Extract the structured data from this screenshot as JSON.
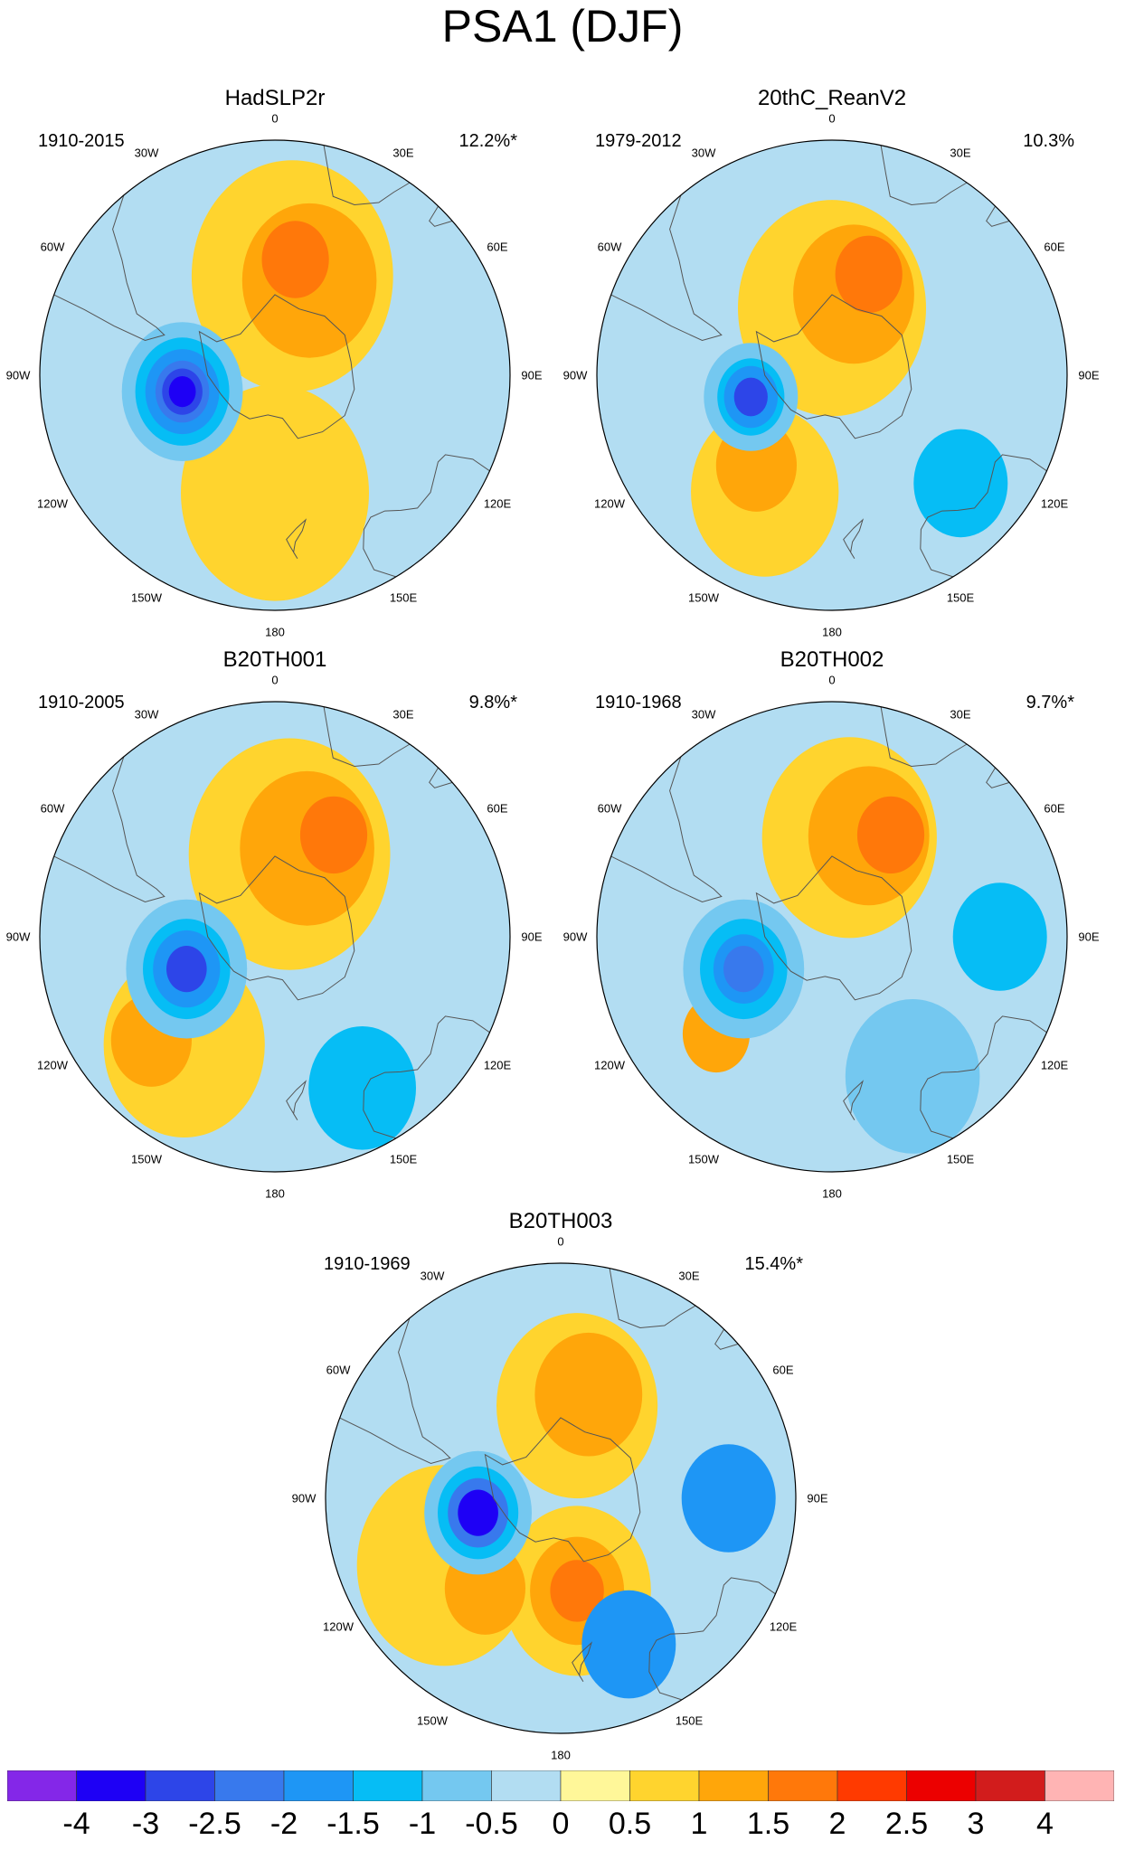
{
  "title": "PSA1 (DJF)",
  "lon_labels": [
    "0",
    "30E",
    "60E",
    "90E",
    "120E",
    "150E",
    "180",
    "150W",
    "120W",
    "90W",
    "60W",
    "30W"
  ],
  "panels": [
    {
      "name": "HadSLP2r",
      "period": "1910-2015",
      "variance": "12.2%*",
      "blobs": [
        {
          "lat": -55,
          "lon": 180,
          "r": 28,
          "level": 0.5
        },
        {
          "lat": -60,
          "lon": 10,
          "r": 30,
          "level": 0.5
        },
        {
          "lat": -60,
          "lon": 20,
          "r": 20,
          "level": 1
        },
        {
          "lat": -55,
          "lon": 10,
          "r": 10,
          "level": 1.5
        },
        {
          "lat": -62,
          "lon": -100,
          "r": 18,
          "level": -0.5
        },
        {
          "lat": -62,
          "lon": -100,
          "r": 14,
          "level": -1
        },
        {
          "lat": -62,
          "lon": -100,
          "r": 11,
          "level": -1.5
        },
        {
          "lat": -62,
          "lon": -100,
          "r": 8,
          "level": -2
        },
        {
          "lat": -62,
          "lon": -100,
          "r": 6,
          "level": -2.5
        },
        {
          "lat": -62,
          "lon": -100,
          "r": 4,
          "level": -3
        }
      ]
    },
    {
      "name": "20thC_ReanV2",
      "period": "1979-2012",
      "variance": "10.3%",
      "blobs": [
        {
          "lat": -70,
          "lon": 0,
          "r": 28,
          "level": 0.5
        },
        {
          "lat": -50,
          "lon": -150,
          "r": 22,
          "level": 0.5
        },
        {
          "lat": -65,
          "lon": 15,
          "r": 18,
          "level": 1
        },
        {
          "lat": -55,
          "lon": -140,
          "r": 12,
          "level": 1
        },
        {
          "lat": -58,
          "lon": 20,
          "r": 10,
          "level": 1.5
        },
        {
          "lat": -40,
          "lon": 130,
          "r": 14,
          "level": -1
        },
        {
          "lat": -65,
          "lon": -105,
          "r": 14,
          "level": -0.5
        },
        {
          "lat": -65,
          "lon": -105,
          "r": 10,
          "level": -1
        },
        {
          "lat": -65,
          "lon": -105,
          "r": 8,
          "level": -1.5
        },
        {
          "lat": -65,
          "lon": -105,
          "r": 5,
          "level": -2.5
        }
      ]
    },
    {
      "name": "B20TH001",
      "period": "1910-2005",
      "variance": "9.8%*",
      "blobs": [
        {
          "lat": -48,
          "lon": -140,
          "r": 24,
          "level": 0.5
        },
        {
          "lat": -65,
          "lon": 10,
          "r": 30,
          "level": 0.5
        },
        {
          "lat": -62,
          "lon": 20,
          "r": 20,
          "level": 1
        },
        {
          "lat": -55,
          "lon": 30,
          "r": 10,
          "level": 1.5
        },
        {
          "lat": -42,
          "lon": -130,
          "r": 12,
          "level": 1
        },
        {
          "lat": -38,
          "lon": 150,
          "r": 16,
          "level": -1
        },
        {
          "lat": -62,
          "lon": -110,
          "r": 18,
          "level": -0.5
        },
        {
          "lat": -62,
          "lon": -110,
          "r": 13,
          "level": -1
        },
        {
          "lat": -62,
          "lon": -110,
          "r": 10,
          "level": -1.5
        },
        {
          "lat": -62,
          "lon": -110,
          "r": 6,
          "level": -2.5
        }
      ]
    },
    {
      "name": "B20TH002",
      "period": "1910-1968",
      "variance": "9.7%*",
      "blobs": [
        {
          "lat": -60,
          "lon": 10,
          "r": 26,
          "level": 0.5
        },
        {
          "lat": -58,
          "lon": 20,
          "r": 18,
          "level": 1
        },
        {
          "lat": -55,
          "lon": 30,
          "r": 10,
          "level": 1.5
        },
        {
          "lat": -45,
          "lon": -130,
          "r": 10,
          "level": 1
        },
        {
          "lat": -40,
          "lon": 90,
          "r": 14,
          "level": -1
        },
        {
          "lat": -42,
          "lon": 150,
          "r": 20,
          "level": -0.5
        },
        {
          "lat": -62,
          "lon": -110,
          "r": 18,
          "level": -0.5
        },
        {
          "lat": -62,
          "lon": -110,
          "r": 13,
          "level": -1
        },
        {
          "lat": -62,
          "lon": -110,
          "r": 9,
          "level": -1.5
        },
        {
          "lat": -62,
          "lon": -110,
          "r": 6,
          "level": -2
        }
      ]
    },
    {
      "name": "B20TH003",
      "period": "1910-1969",
      "variance": "15.4%*",
      "blobs": [
        {
          "lat": -50,
          "lon": -120,
          "r": 26,
          "level": 0.5
        },
        {
          "lat": -62,
          "lon": 10,
          "r": 24,
          "level": 0.5
        },
        {
          "lat": -62,
          "lon": 170,
          "r": 22,
          "level": 0.5
        },
        {
          "lat": -58,
          "lon": 15,
          "r": 16,
          "level": 1
        },
        {
          "lat": -55,
          "lon": -140,
          "r": 12,
          "level": 1
        },
        {
          "lat": -62,
          "lon": 170,
          "r": 14,
          "level": 1
        },
        {
          "lat": -62,
          "lon": 170,
          "r": 8,
          "level": 1.5
        },
        {
          "lat": -40,
          "lon": 90,
          "r": 14,
          "level": -1.5
        },
        {
          "lat": -42,
          "lon": 155,
          "r": 14,
          "level": -1.5
        },
        {
          "lat": -65,
          "lon": -100,
          "r": 16,
          "level": -0.5
        },
        {
          "lat": -65,
          "lon": -100,
          "r": 12,
          "level": -1
        },
        {
          "lat": -65,
          "lon": -100,
          "r": 9,
          "level": -2
        },
        {
          "lat": -65,
          "lon": -100,
          "r": 6,
          "level": -3
        }
      ]
    }
  ],
  "colorbar": {
    "labels": [
      "-4",
      "-3",
      "-2.5",
      "-2",
      "-1.5",
      "-1",
      "-0.5",
      "0",
      "0.5",
      "1",
      "1.5",
      "2",
      "2.5",
      "3",
      "4"
    ],
    "levels": [
      -4,
      -3,
      -2.5,
      -2,
      -1.5,
      -1,
      -0.5,
      0,
      0.5,
      1,
      1.5,
      2,
      2.5,
      3,
      4
    ],
    "colors": [
      "#8427e8",
      "#1e00f5",
      "#2d45e8",
      "#3879ed",
      "#1e96f5",
      "#06bdf5",
      "#74c8f0",
      "#b2ddf2",
      "#fff799",
      "#ffd42e",
      "#ffa60a",
      "#ff780a",
      "#ff3a00",
      "#ec0000",
      "#d21c1c",
      "#ffb4b4"
    ]
  }
}
